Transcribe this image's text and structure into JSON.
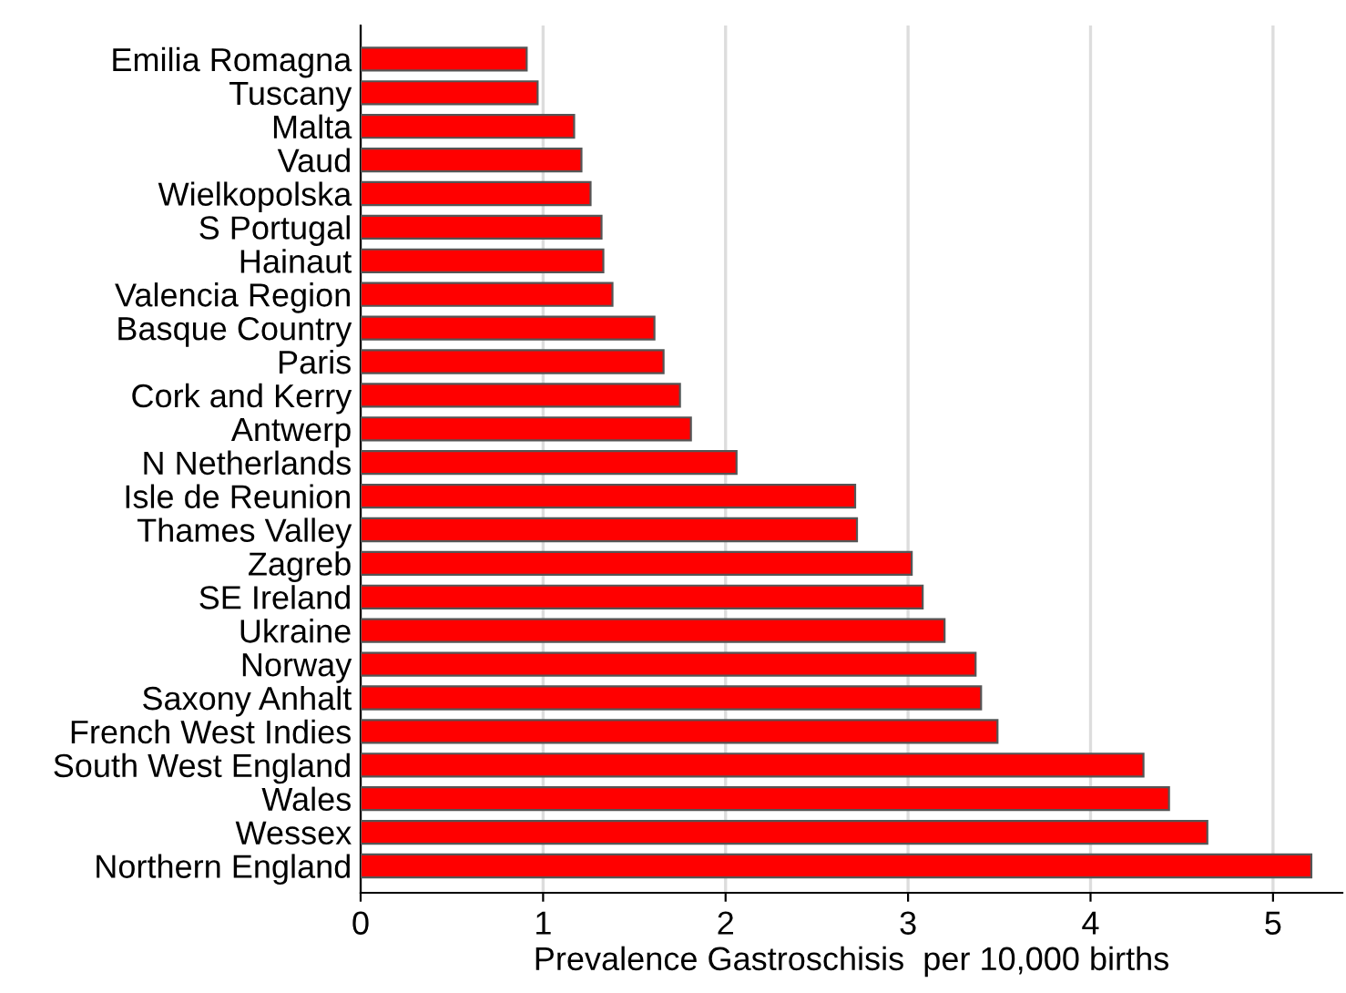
{
  "chart_data": {
    "type": "bar",
    "orientation": "horizontal",
    "xlabel": "Prevalence Gastroschisis  per 10,000 births",
    "categories": [
      "Emilia Romagna",
      "Tuscany",
      "Malta",
      "Vaud",
      "Wielkopolska",
      "S Portugal",
      "Hainaut",
      "Valencia Region",
      "Basque Country",
      "Paris",
      "Cork and Kerry",
      "Antwerp",
      "N Netherlands",
      "Isle de Reunion",
      "Thames Valley",
      "Zagreb",
      "SE Ireland",
      "Ukraine",
      "Norway",
      "Saxony Anhalt",
      "French West Indies",
      "South West England",
      "Wales",
      "Wessex",
      "Northern England"
    ],
    "values": [
      0.91,
      0.97,
      1.17,
      1.21,
      1.26,
      1.32,
      1.33,
      1.38,
      1.61,
      1.66,
      1.75,
      1.81,
      2.06,
      2.71,
      2.72,
      3.02,
      3.08,
      3.2,
      3.37,
      3.4,
      3.49,
      4.29,
      4.43,
      4.64,
      5.21
    ],
    "color": "#ff0000",
    "xlim": [
      0,
      5.38
    ],
    "xticks": [
      0,
      1,
      2,
      3,
      4,
      5
    ],
    "grid": "x",
    "legend": false
  }
}
